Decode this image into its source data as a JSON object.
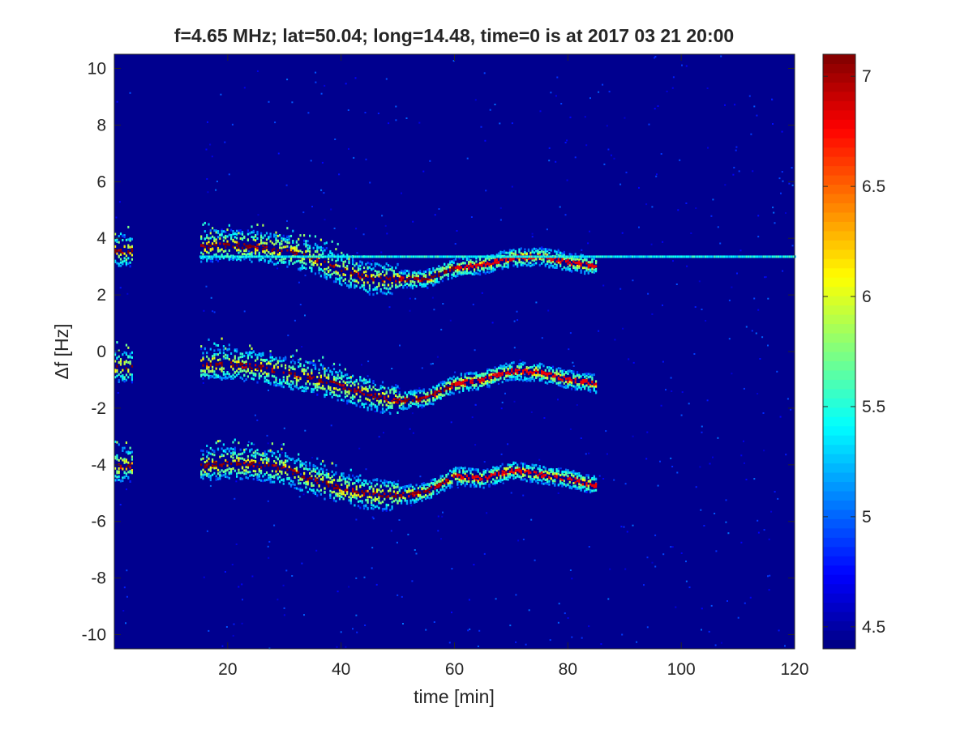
{
  "chart_data": {
    "type": "heatmap",
    "title": "f=4.65 MHz;  lat=50.04; long=14.48, time=0 is at 2017 03 21 20:00",
    "xlabel": "time [min]",
    "ylabel": "Δf [Hz]",
    "xlim": [
      0,
      120
    ],
    "ylim": [
      -10.5,
      10.5
    ],
    "xticks": [
      20,
      40,
      60,
      80,
      100,
      120
    ],
    "yticks": [
      -10,
      -8,
      -6,
      -4,
      -2,
      0,
      2,
      4,
      6,
      8,
      10
    ],
    "colorbar": {
      "colormap": "jet",
      "range": [
        4.4,
        7.1
      ],
      "ticks": [
        4.5,
        5,
        5.5,
        6,
        6.5,
        7
      ]
    },
    "background_value": 4.4,
    "data_gaps": [
      [
        3,
        15
      ]
    ],
    "traces": [
      {
        "description": "upper trace",
        "points": [
          [
            0,
            3.6
          ],
          [
            2.5,
            3.6
          ],
          [
            15,
            3.75
          ],
          [
            20,
            3.8
          ],
          [
            25,
            3.75
          ],
          [
            30,
            3.6
          ],
          [
            35,
            3.35
          ],
          [
            40,
            2.9
          ],
          [
            45,
            2.6
          ],
          [
            50,
            2.6
          ],
          [
            55,
            2.6
          ],
          [
            60,
            3.0
          ],
          [
            65,
            3.1
          ],
          [
            70,
            3.35
          ],
          [
            75,
            3.4
          ],
          [
            80,
            3.2
          ],
          [
            85,
            3.05
          ]
        ],
        "peak": 7.1
      },
      {
        "description": "middle trace",
        "points": [
          [
            0,
            -0.5
          ],
          [
            2.5,
            -0.5
          ],
          [
            15,
            -0.4
          ],
          [
            20,
            -0.4
          ],
          [
            25,
            -0.5
          ],
          [
            30,
            -0.7
          ],
          [
            35,
            -0.9
          ],
          [
            40,
            -1.2
          ],
          [
            45,
            -1.5
          ],
          [
            50,
            -1.7
          ],
          [
            55,
            -1.6
          ],
          [
            60,
            -1.1
          ],
          [
            65,
            -0.95
          ],
          [
            70,
            -0.65
          ],
          [
            75,
            -0.7
          ],
          [
            80,
            -0.95
          ],
          [
            85,
            -1.1
          ]
        ],
        "peak": 7.1
      },
      {
        "description": "lower trace",
        "points": [
          [
            0,
            -4.0
          ],
          [
            2.5,
            -4.0
          ],
          [
            15,
            -4.0
          ],
          [
            20,
            -3.9
          ],
          [
            25,
            -3.95
          ],
          [
            30,
            -4.1
          ],
          [
            35,
            -4.5
          ],
          [
            40,
            -4.8
          ],
          [
            45,
            -5.0
          ],
          [
            50,
            -5.05
          ],
          [
            55,
            -4.9
          ],
          [
            60,
            -4.35
          ],
          [
            65,
            -4.45
          ],
          [
            70,
            -4.15
          ],
          [
            75,
            -4.3
          ],
          [
            80,
            -4.45
          ],
          [
            85,
            -4.7
          ]
        ],
        "peak": 7.1
      },
      {
        "description": "constant line",
        "points": [
          [
            15,
            3.35
          ],
          [
            120,
            3.35
          ]
        ],
        "peak": 5.6
      }
    ]
  }
}
